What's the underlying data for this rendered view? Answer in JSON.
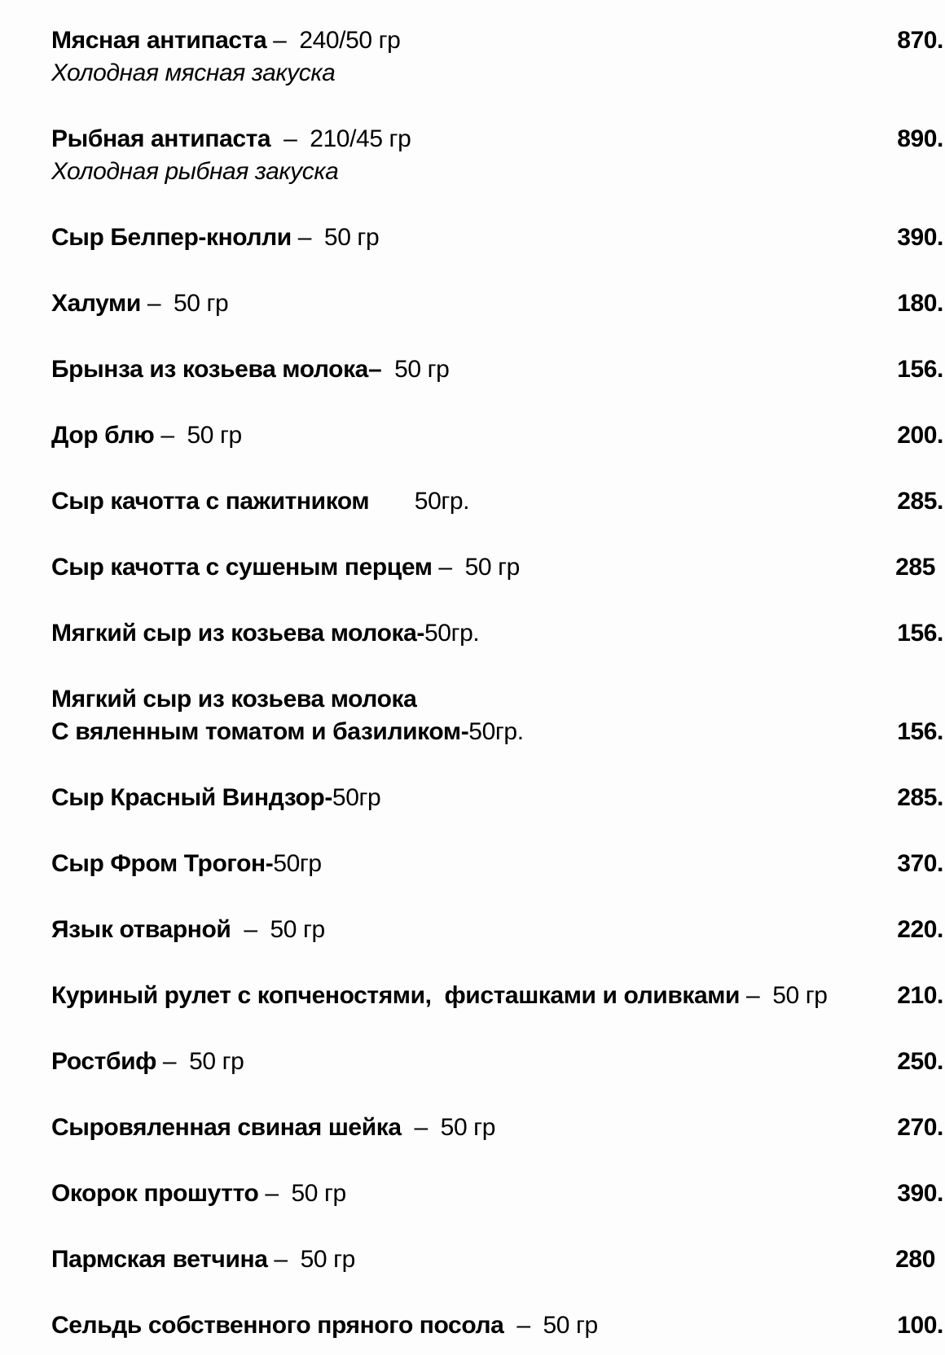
{
  "page": {
    "background": "#fdfdfd",
    "text_color": "#000000",
    "language": "ru",
    "type": "menu-price-list"
  },
  "menu": {
    "items": [
      {
        "name": "Мясная антипаста",
        "detail": " –  240/50 гр",
        "price": "870.",
        "desc": "Холодная мясная закуска"
      },
      {
        "name": "Рыбная антипаста",
        "detail": "  –  210/45 гр",
        "price": "890.",
        "desc": "Холодная рыбная закуска"
      },
      {
        "name": "Сыр Белпер-кнолли",
        "detail": " –  50 гр",
        "price": "390."
      },
      {
        "name": "Халуми",
        "detail": " –  50 гр",
        "price": "180."
      },
      {
        "name": "Брынза из козьева молока–",
        "detail": "  50 гр",
        "price": "156."
      },
      {
        "name": "Дор блю",
        "detail": " –  50 гр",
        "price": "200."
      },
      {
        "name": "Сыр качотта с пажитником",
        "detail": "       50гр.",
        "price": "285."
      },
      {
        "name": "Сыр качотта с сушеным перцем",
        "detail": " –  50 гр",
        "price": "285"
      },
      {
        "name": "Мягкий сыр из козьева молока-",
        "detail": "50гр.",
        "price": "156."
      },
      {
        "name_line1": "Мягкий сыр из козьева молока",
        "name": "С вяленным томатом и базиликом-",
        "detail": "50гр.",
        "price": "156."
      },
      {
        "name": "Сыр Красный Виндзор-",
        "detail": "50гр",
        "price": "285."
      },
      {
        "name": "Сыр Фром Трогон-",
        "detail": "50гр",
        "price": "370."
      },
      {
        "name": "Язык отварной",
        "detail": "  –  50 гр",
        "price": "220."
      },
      {
        "name": "Куриный рулет с копченостями,  фисташками и оливками",
        "detail": " –  50 гр",
        "price": "210."
      },
      {
        "name": "Ростбиф",
        "detail": " –  50 гр",
        "price": "250."
      },
      {
        "name": "Сыровяленная свиная шейка",
        "detail": "  –  50 гр",
        "price": "270."
      },
      {
        "name": "Окорок прошутто",
        "detail": " –  50 гр",
        "price": "390."
      },
      {
        "name": "Пармская ветчина",
        "detail": " –  50 гр",
        "price": "280"
      },
      {
        "name": "Сельдь собственного пряного посола",
        "detail": "  –  50 гр",
        "price": "100."
      }
    ]
  }
}
